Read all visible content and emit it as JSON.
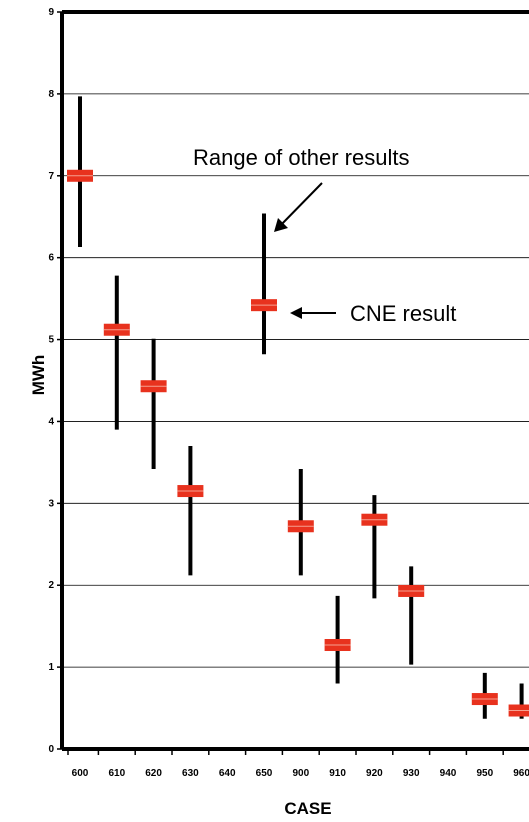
{
  "chart_data": {
    "type": "scatter",
    "xlabel": "CASE",
    "ylabel": "MWh",
    "ylim": [
      0,
      9
    ],
    "yticks": [
      "0",
      "1",
      "2",
      "3",
      "4",
      "5",
      "6",
      "7",
      "8",
      "9"
    ],
    "grid": "horizontal",
    "categories": [
      "600",
      "610",
      "620",
      "630",
      "640",
      "650",
      "900",
      "910",
      "920",
      "930",
      "940",
      "950",
      "960"
    ],
    "series": [
      {
        "name": "CNE result",
        "values": [
          7.0,
          5.12,
          4.43,
          3.15,
          null,
          5.42,
          2.72,
          1.27,
          2.8,
          1.93,
          null,
          0.61,
          0.47
        ]
      },
      {
        "name": "Range of other results",
        "ranges": [
          [
            6.13,
            7.97
          ],
          [
            3.9,
            5.78
          ],
          [
            3.42,
            5.01
          ],
          [
            2.12,
            3.7
          ],
          null,
          [
            4.82,
            6.54
          ],
          [
            2.12,
            3.42
          ],
          [
            0.8,
            1.87
          ],
          [
            1.84,
            3.1
          ],
          [
            1.03,
            2.23
          ],
          null,
          [
            0.37,
            0.93
          ],
          [
            0.37,
            0.8
          ]
        ]
      }
    ],
    "annotations": [
      "Range of other results",
      "CNE result"
    ]
  }
}
